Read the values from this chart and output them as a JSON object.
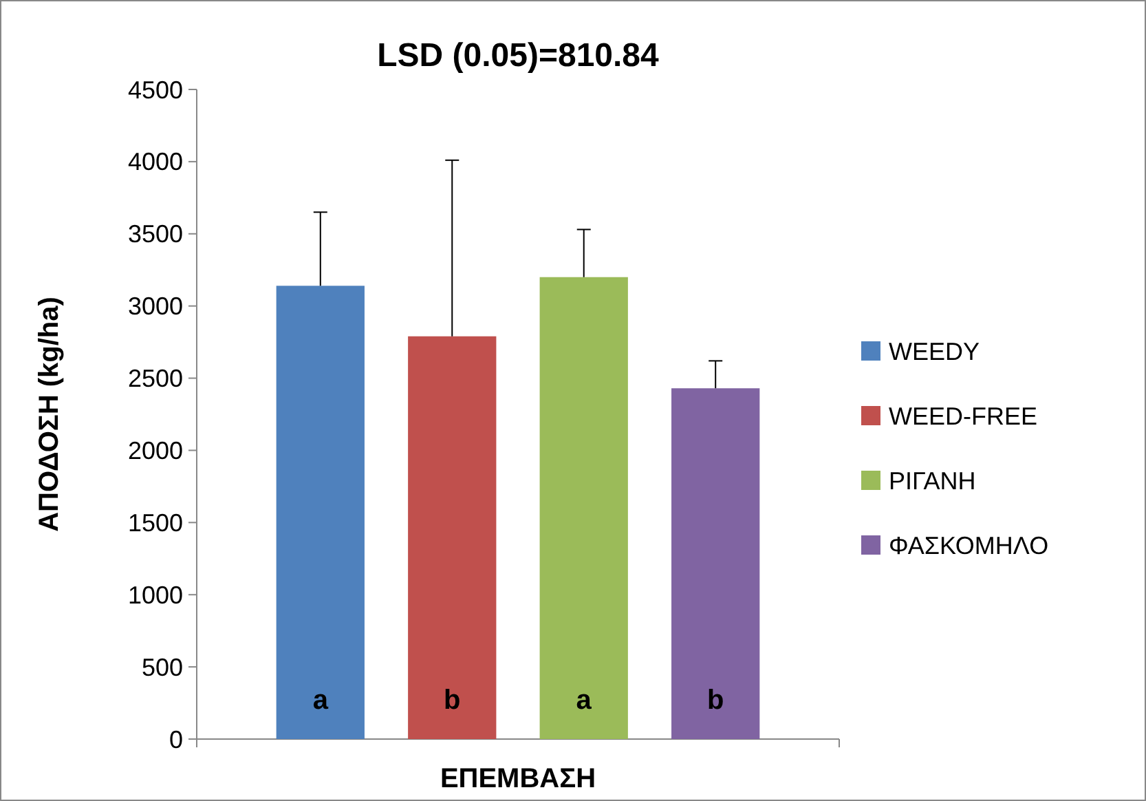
{
  "chart_data": {
    "type": "bar",
    "title": "LSD (0.05)=810.84",
    "xlabel": "ΕΠΕΜΒΑΣΗ",
    "ylabel": "ΑΠΟΔΟΣΗ (kg/ha)",
    "categories": [
      null
    ],
    "series": [
      {
        "name": "WEEDY",
        "color": "#4f81bd",
        "values": [
          3140
        ],
        "errors": [
          [
            3140,
            3650
          ]
        ]
      },
      {
        "name": "WEED-FREE",
        "color": "#c0504d",
        "values": [
          2790
        ],
        "errors": [
          [
            2790,
            4010
          ]
        ]
      },
      {
        "name": "ΡΙΓΑΝΗ",
        "color": "#9bbb59",
        "values": [
          3200
        ],
        "errors": [
          [
            3200,
            3530
          ]
        ]
      },
      {
        "name": "ΦΑΣΚΟΜΗΛΟ",
        "color": "#8064a2",
        "values": [
          2430
        ],
        "errors": [
          [
            2430,
            2620
          ]
        ]
      }
    ],
    "annotations": [
      "a",
      "b",
      "a",
      "b"
    ],
    "ylim": [
      0,
      4500
    ],
    "yticks": [
      0,
      500,
      1000,
      1500,
      2000,
      2500,
      3000,
      3500,
      4000,
      4500
    ],
    "legend": "right"
  }
}
